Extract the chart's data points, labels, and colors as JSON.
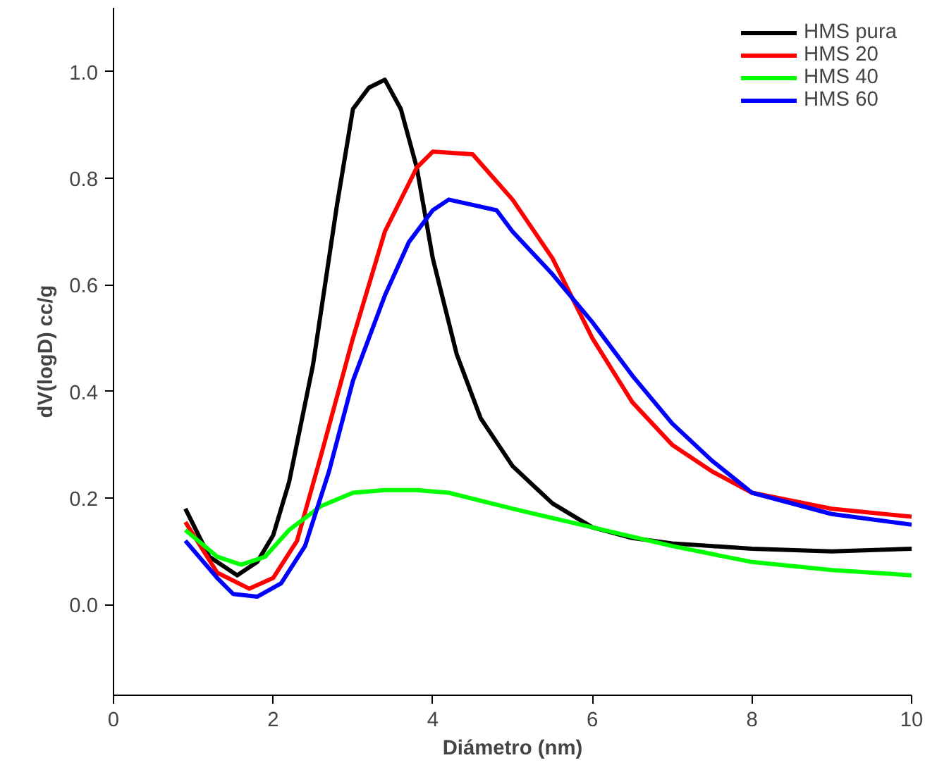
{
  "chart_data": {
    "type": "line",
    "xlabel": "Diámetro (nm)",
    "ylabel": "dV(logD) cc/g",
    "xlim": [
      0,
      10
    ],
    "ylim": [
      -0.17,
      1.12
    ],
    "xticks": [
      0,
      2,
      4,
      6,
      8,
      10
    ],
    "yticks": [
      {
        "value": 0,
        "label": "0.0"
      },
      0.2,
      0.4,
      0.6,
      0.8,
      {
        "value": 1,
        "label": "1.0"
      }
    ],
    "grid": false,
    "legend": "top right",
    "marker": "none",
    "line_style": "solid",
    "series": [
      {
        "name": "HMS pura",
        "color": "#000000",
        "x": [
          0.9,
          1.2,
          1.55,
          1.8,
          2.0,
          2.2,
          2.5,
          2.8,
          3.0,
          3.2,
          3.4,
          3.6,
          3.8,
          4.0,
          4.3,
          4.6,
          5.0,
          5.5,
          6.0,
          6.5,
          7.0,
          8.0,
          9.0,
          10.0
        ],
        "values": [
          0.18,
          0.09,
          0.055,
          0.08,
          0.13,
          0.23,
          0.45,
          0.75,
          0.93,
          0.97,
          0.985,
          0.93,
          0.82,
          0.65,
          0.47,
          0.35,
          0.26,
          0.19,
          0.145,
          0.125,
          0.115,
          0.105,
          0.1,
          0.105
        ]
      },
      {
        "name": "HMS 20",
        "color": "#ff0000",
        "x": [
          0.9,
          1.3,
          1.7,
          2.0,
          2.3,
          2.6,
          3.0,
          3.4,
          3.8,
          4.0,
          4.5,
          5.0,
          5.5,
          6.0,
          6.5,
          7.0,
          7.5,
          8.0,
          9.0,
          10.0
        ],
        "values": [
          0.155,
          0.06,
          0.03,
          0.05,
          0.12,
          0.28,
          0.5,
          0.7,
          0.82,
          0.85,
          0.845,
          0.76,
          0.65,
          0.5,
          0.38,
          0.3,
          0.25,
          0.21,
          0.18,
          0.165
        ]
      },
      {
        "name": "HMS 40",
        "color": "#00ff00",
        "x": [
          0.9,
          1.3,
          1.6,
          1.9,
          2.2,
          2.6,
          3.0,
          3.4,
          3.8,
          4.2,
          5.0,
          6.0,
          7.0,
          8.0,
          9.0,
          10.0
        ],
        "values": [
          0.14,
          0.09,
          0.075,
          0.09,
          0.14,
          0.185,
          0.21,
          0.215,
          0.215,
          0.21,
          0.18,
          0.145,
          0.11,
          0.08,
          0.065,
          0.055
        ]
      },
      {
        "name": "HMS 60",
        "color": "#0000ff",
        "x": [
          0.9,
          1.3,
          1.5,
          1.8,
          2.1,
          2.4,
          2.7,
          3.0,
          3.4,
          3.7,
          4.0,
          4.2,
          4.5,
          4.8,
          5.0,
          5.5,
          6.0,
          6.5,
          7.0,
          7.5,
          8.0,
          9.0,
          10.0
        ],
        "values": [
          0.12,
          0.05,
          0.02,
          0.015,
          0.04,
          0.11,
          0.25,
          0.42,
          0.58,
          0.68,
          0.74,
          0.76,
          0.75,
          0.74,
          0.7,
          0.62,
          0.53,
          0.43,
          0.34,
          0.27,
          0.21,
          0.17,
          0.15
        ]
      }
    ]
  }
}
